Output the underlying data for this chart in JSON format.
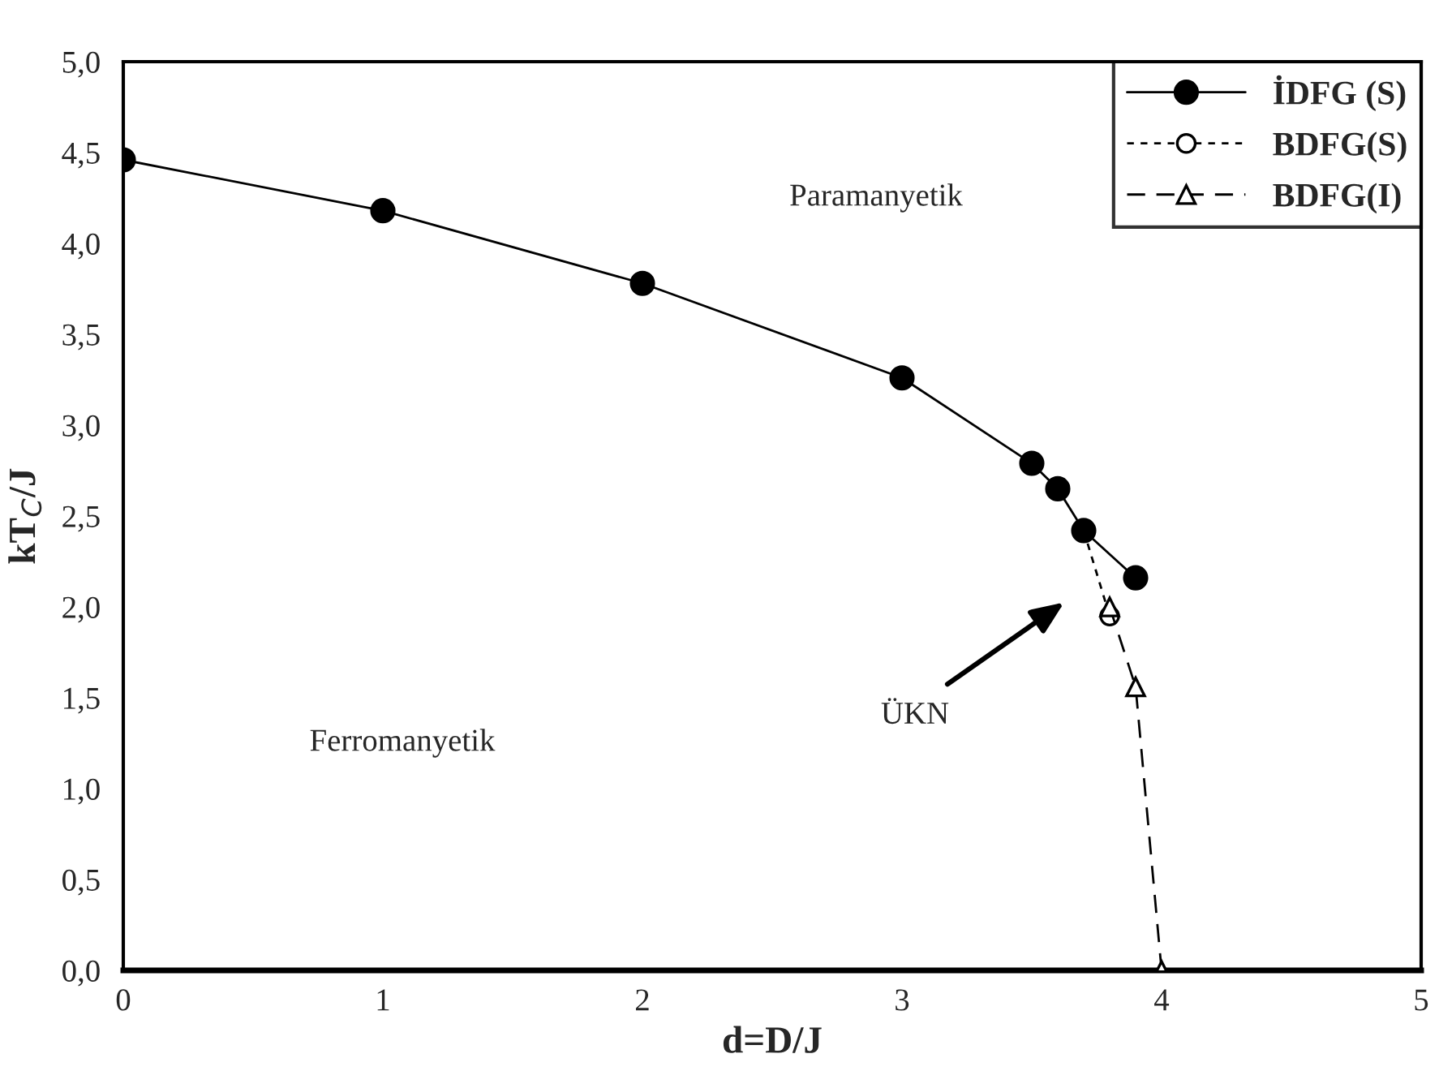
{
  "chart_data": {
    "type": "line",
    "xlabel": "d=D/J",
    "ylabel": "kT$_{C}$/J",
    "xlim": [
      0,
      5
    ],
    "xticks": [
      0,
      1,
      2,
      3,
      4,
      5
    ],
    "ylim": [
      0,
      5
    ],
    "yticks": [
      {
        "value": 0,
        "label": "0,0"
      },
      {
        "value": 0.5,
        "label": "0,5"
      },
      {
        "value": 1,
        "label": "1,0"
      },
      {
        "value": 1.5,
        "label": "1,5"
      },
      {
        "value": 2,
        "label": "2,0"
      },
      {
        "value": 2.5,
        "label": "2,5"
      },
      {
        "value": 3,
        "label": "3,0"
      },
      {
        "value": 3.5,
        "label": "3,5"
      },
      {
        "value": 4,
        "label": "4,0"
      },
      {
        "value": 4.5,
        "label": "4,5"
      },
      {
        "value": 5,
        "label": "5,0"
      }
    ],
    "grid": false,
    "legend": "top right",
    "series": [
      {
        "name": "İDFG (S)",
        "color": "#000000",
        "marker": "circle",
        "line_style": "solid",
        "x": [
          0,
          1,
          2,
          3,
          3.5,
          3.6,
          3.7,
          3.9
        ],
        "values": [
          4.46,
          4.18,
          3.78,
          3.26,
          2.79,
          2.65,
          2.42,
          2.16
        ]
      },
      {
        "name": "BDFG(S)",
        "color": "#000000",
        "marker": "circle",
        "line_style": "dashed",
        "x": [
          3.7,
          3.8
        ],
        "values": [
          2.42,
          1.95
        ]
      },
      {
        "name": "BDFG(I)",
        "color": "#000000",
        "marker": "triangle",
        "line_style": "longdash",
        "x": [
          3.8,
          3.9,
          4.0
        ],
        "values": [
          2.0,
          1.56,
          0.0
        ]
      }
    ],
    "annotations": [
      "Paramanyetik",
      "Ferromanyetik",
      "ÜKN"
    ]
  }
}
